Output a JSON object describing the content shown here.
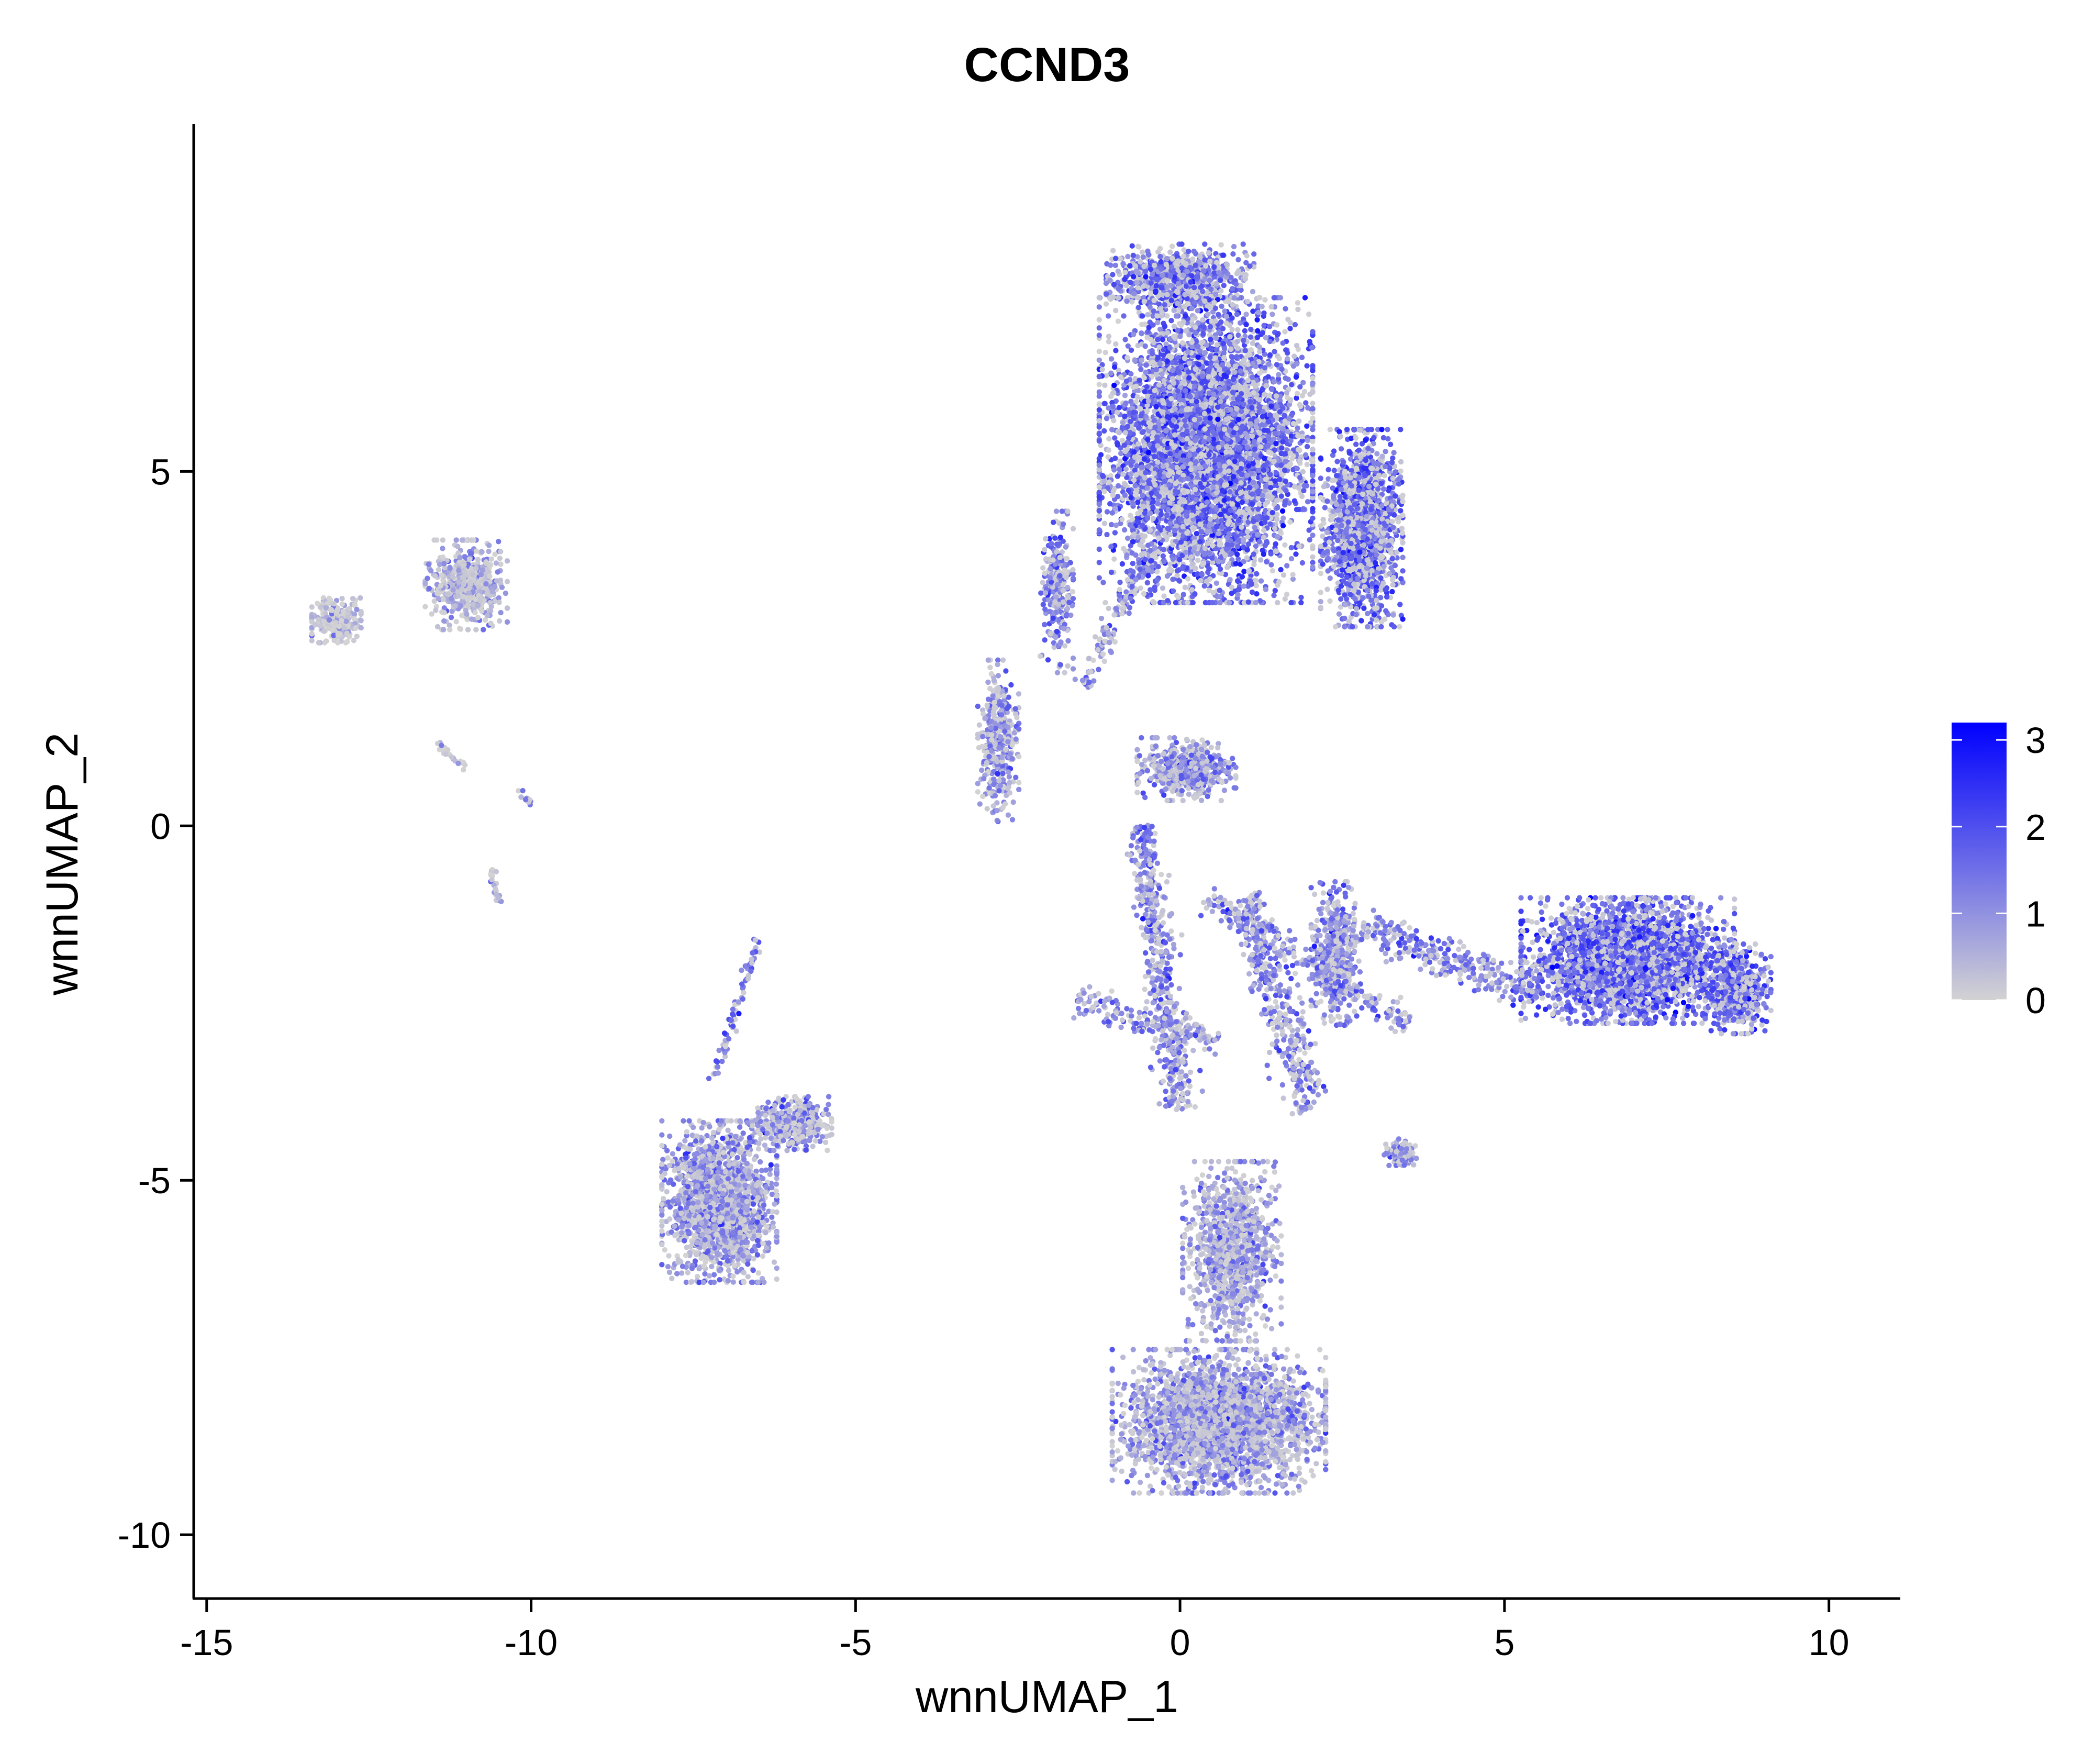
{
  "chart_data": {
    "type": "scatter",
    "title": "CCND3",
    "xlabel": "wnnUMAP_1",
    "ylabel": "wnnUMAP_2",
    "xlim": [
      -15.2,
      11.1
    ],
    "ylim": [
      -10.9,
      9.9
    ],
    "x_ticks": [
      -15,
      -10,
      -5,
      0,
      5,
      10
    ],
    "x_tick_labels": [
      "-15",
      "-10",
      "-5",
      "0",
      "5",
      "10"
    ],
    "y_ticks": [
      -10,
      -5,
      0,
      5
    ],
    "y_tick_labels": [
      "-10",
      "-5",
      "0",
      "5"
    ],
    "grid": false,
    "color_scale": {
      "low_color": "#d3d3d3",
      "high_color": "#0000ff",
      "min": 0,
      "max": 3.2,
      "ticks": [
        0,
        1,
        2,
        3
      ],
      "tick_labels": [
        "0",
        "1",
        "2",
        "3"
      ],
      "placement": "right"
    },
    "clusters": [
      {
        "center": [
          0.4,
          5.3
        ],
        "spread": [
          1.3,
          1.7
        ],
        "share": 0.23,
        "expression": 1.6
      },
      {
        "center": [
          2.8,
          4.2
        ],
        "spread": [
          0.5,
          1.1
        ],
        "share": 0.06,
        "expression": 1.6
      },
      {
        "center": [
          0.0,
          7.7
        ],
        "spread": [
          0.9,
          0.4
        ],
        "share": 0.03,
        "expression": 1.5
      },
      {
        "center": [
          6.9,
          -1.9
        ],
        "spread": [
          1.3,
          0.7
        ],
        "share": 0.11,
        "expression": 1.7
      },
      {
        "center": [
          8.6,
          -2.3
        ],
        "spread": [
          0.4,
          0.5
        ],
        "share": 0.02,
        "expression": 1.7
      },
      {
        "center": [
          0.6,
          -8.4
        ],
        "spread": [
          1.3,
          0.8
        ],
        "share": 0.11,
        "expression": 0.9
      },
      {
        "center": [
          0.8,
          -6.0
        ],
        "spread": [
          0.6,
          1.0
        ],
        "share": 0.04,
        "expression": 0.9
      },
      {
        "center": [
          -7.1,
          -5.3
        ],
        "spread": [
          0.7,
          0.9
        ],
        "share": 0.07,
        "expression": 1.0
      },
      {
        "center": [
          -6.0,
          -4.2
        ],
        "spread": [
          0.5,
          0.3
        ],
        "share": 0.015,
        "expression": 1.0
      },
      {
        "center": [
          -11.0,
          3.4
        ],
        "spread": [
          0.5,
          0.5
        ],
        "share": 0.02,
        "expression": 0.6
      },
      {
        "center": [
          -13.0,
          2.9
        ],
        "spread": [
          0.3,
          0.25
        ],
        "share": 0.01,
        "expression": 0.3
      },
      {
        "center": [
          -2.8,
          1.2
        ],
        "spread": [
          0.25,
          0.9
        ],
        "share": 0.015,
        "expression": 1.1
      },
      {
        "center": [
          0.1,
          0.8
        ],
        "spread": [
          0.6,
          0.35
        ],
        "share": 0.02,
        "expression": 1.2
      },
      {
        "center": [
          2.4,
          -1.8
        ],
        "spread": [
          0.3,
          0.8
        ],
        "share": 0.02,
        "expression": 1.2
      },
      {
        "center": [
          3.4,
          -4.6
        ],
        "spread": [
          0.2,
          0.15
        ],
        "share": 0.004,
        "expression": 1.0
      },
      {
        "center": [
          -1.9,
          3.3
        ],
        "spread": [
          0.2,
          0.9
        ],
        "share": 0.01,
        "expression": 1.3
      }
    ],
    "trails": [
      {
        "from": [
          -0.6,
          0.0
        ],
        "to": [
          0.0,
          -4.0
        ],
        "width": 0.25,
        "share": 0.02,
        "expression": 1.2
      },
      {
        "from": [
          0.4,
          -1.0
        ],
        "to": [
          3.5,
          -2.8
        ],
        "width": 0.2,
        "share": 0.01,
        "expression": 1.1
      },
      {
        "from": [
          2.8,
          -1.4
        ],
        "to": [
          5.5,
          -2.4
        ],
        "width": 0.25,
        "share": 0.012,
        "expression": 1.2
      },
      {
        "from": [
          2.0,
          -4.0
        ],
        "to": [
          1.0,
          -1.0
        ],
        "width": 0.3,
        "share": 0.015,
        "expression": 1.1
      },
      {
        "from": [
          -1.6,
          -2.5
        ],
        "to": [
          0.6,
          -3.0
        ],
        "width": 0.2,
        "share": 0.006,
        "expression": 1.1
      },
      {
        "from": [
          -7.2,
          -3.6
        ],
        "to": [
          -6.5,
          -1.6
        ],
        "width": 0.08,
        "share": 0.003,
        "expression": 1.4
      },
      {
        "from": [
          -1.5,
          2.0
        ],
        "to": [
          -0.4,
          4.0
        ],
        "width": 0.15,
        "share": 0.006,
        "expression": 1.2
      },
      {
        "from": [
          -11.5,
          1.2
        ],
        "to": [
          -11.0,
          0.8
        ],
        "width": 0.06,
        "share": 0.0008,
        "expression": 0.3
      },
      {
        "from": [
          -10.6,
          -0.6
        ],
        "to": [
          -10.5,
          -1.1
        ],
        "width": 0.05,
        "share": 0.0008,
        "expression": 0.4
      },
      {
        "from": [
          -10.2,
          0.5
        ],
        "to": [
          -10.0,
          0.3
        ],
        "width": 0.05,
        "share": 0.0006,
        "expression": 1.0
      }
    ]
  }
}
